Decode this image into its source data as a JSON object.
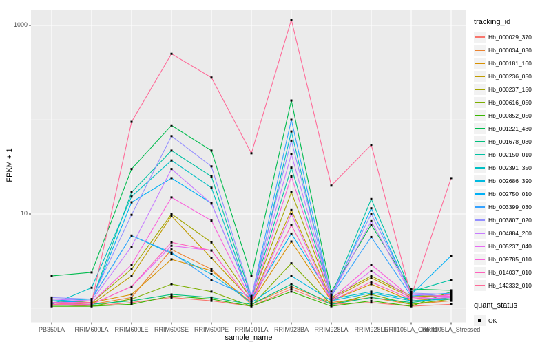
{
  "figure": {
    "background": "#FFFFFF",
    "panel_background": "#EBEBEB",
    "gridline_color": "#FFFFFF",
    "tick_label_color": "#4D4D4D",
    "point_color": "#000000"
  },
  "axes": {
    "x_title": "sample_name",
    "y_title": "FPKM + 1",
    "y_tick_labels": [
      "1000",
      "10"
    ],
    "y_tick_values": [
      1000,
      10
    ],
    "y_minor_gridline_values": [
      100,
      1
    ],
    "y_scale": "log10"
  },
  "legend": {
    "tracking_title": "tracking_id",
    "quant_title": "quant_status",
    "quant_ok_label": "OK",
    "quant_marker": "black-square"
  },
  "chart_data": {
    "type": "line",
    "title": "",
    "xlabel": "sample_name",
    "ylabel": "FPKM + 1",
    "legend_position": "right",
    "grid": true,
    "point_marker": "small-black-square",
    "y_axis": {
      "scale": "log10",
      "ticks": [
        10,
        1000
      ],
      "minor": [
        1,
        100
      ],
      "range": [
        0.95,
        1400
      ]
    },
    "categories": [
      "PB350LA",
      "RRIM600LA",
      "RRIM600LE",
      "RRIM600SE",
      "RRIM600PE",
      "RRIM901LA",
      "RRIM928BA",
      "RRIM928LA",
      "RRIM928LE",
      "RRII105LA_Control",
      "RRII105LA_Stressed"
    ],
    "series": [
      {
        "name": "Hb_000029_370",
        "color": "#F8766D",
        "values": [
          1.1,
          1.05,
          1.15,
          1.3,
          1.2,
          1.05,
          1.6,
          1.1,
          1.15,
          1.05,
          1.1
        ]
      },
      {
        "name": "Hb_000034_030",
        "color": "#EA8331",
        "values": [
          1.15,
          1.1,
          1.3,
          4.2,
          2.6,
          1.1,
          1.7,
          1.15,
          1.3,
          1.1,
          1.2
        ]
      },
      {
        "name": "Hb_000181_160",
        "color": "#D89000",
        "values": [
          1.2,
          1.15,
          1.4,
          3.3,
          2.5,
          1.15,
          5.1,
          1.2,
          1.8,
          1.2,
          1.3
        ]
      },
      {
        "name": "Hb_000236_050",
        "color": "#C09B00",
        "values": [
          1.1,
          1.1,
          2.2,
          9.5,
          3.4,
          1.2,
          11.0,
          1.25,
          2.1,
          1.3,
          1.4
        ]
      },
      {
        "name": "Hb_000237_150",
        "color": "#A3A500",
        "values": [
          1.1,
          1.15,
          2.6,
          10.0,
          5.0,
          1.25,
          17.0,
          1.3,
          2.2,
          1.35,
          1.35
        ]
      },
      {
        "name": "Hb_000616_050",
        "color": "#7CAE00",
        "values": [
          1.05,
          1.05,
          1.25,
          1.8,
          1.5,
          1.05,
          3.0,
          1.1,
          1.4,
          1.1,
          1.25
        ]
      },
      {
        "name": "Hb_000852_050",
        "color": "#39B600",
        "values": [
          1.05,
          1.05,
          1.1,
          1.35,
          1.25,
          1.05,
          1.5,
          1.05,
          1.2,
          1.05,
          1.5
        ]
      },
      {
        "name": "Hb_001221_480",
        "color": "#00BB4E",
        "values": [
          2.2,
          2.4,
          30.0,
          87.0,
          47.0,
          2.2,
          160.0,
          1.5,
          7.7,
          1.6,
          1.55
        ]
      },
      {
        "name": "Hb_001678_030",
        "color": "#00BF7D",
        "values": [
          1.1,
          1.1,
          1.2,
          1.4,
          1.3,
          1.1,
          1.8,
          1.1,
          1.3,
          1.15,
          1.3
        ]
      },
      {
        "name": "Hb_002150_010",
        "color": "#00C1A3",
        "values": [
          1.15,
          1.2,
          17.0,
          47.0,
          25.0,
          1.3,
          31.0,
          1.35,
          14.4,
          1.5,
          2.0
        ]
      },
      {
        "name": "Hb_002391_350",
        "color": "#00BFC4",
        "values": [
          1.1,
          1.65,
          15.3,
          37.0,
          19.0,
          1.2,
          75.0,
          1.25,
          1.5,
          1.25,
          1.3
        ]
      },
      {
        "name": "Hb_002686_390",
        "color": "#00BAE0",
        "values": [
          1.2,
          1.25,
          5.9,
          3.8,
          2.3,
          1.15,
          2.2,
          1.2,
          1.45,
          1.2,
          1.25
        ]
      },
      {
        "name": "Hb_002750_010",
        "color": "#00B0F6",
        "values": [
          1.15,
          1.2,
          13.3,
          24.0,
          13.0,
          1.25,
          6.2,
          1.3,
          11.5,
          1.4,
          3.6
        ]
      },
      {
        "name": "Hb_003399_030",
        "color": "#35A2FF",
        "values": [
          1.25,
          1.25,
          5.9,
          3.9,
          2.0,
          1.3,
          100.0,
          1.35,
          5.7,
          1.35,
          1.45
        ]
      },
      {
        "name": "Hb_003807_020",
        "color": "#9590FF",
        "values": [
          1.3,
          1.25,
          9.8,
          67.0,
          32.0,
          1.35,
          60.0,
          1.4,
          10.0,
          1.45,
          1.4
        ]
      },
      {
        "name": "Hb_004884_200",
        "color": "#C77CFF",
        "values": [
          1.25,
          1.2,
          4.5,
          30.0,
          12.9,
          1.3,
          43.0,
          1.35,
          8.4,
          1.4,
          1.35
        ]
      },
      {
        "name": "Hb_005237_040",
        "color": "#E76BF3",
        "values": [
          1.1,
          1.1,
          1.7,
          4.6,
          4.1,
          1.15,
          10.0,
          1.2,
          2.5,
          1.25,
          1.3
        ]
      },
      {
        "name": "Hb_009785_010",
        "color": "#FA62DB",
        "values": [
          1.15,
          1.15,
          2.9,
          15.0,
          8.5,
          1.2,
          25.0,
          1.25,
          2.9,
          1.3,
          1.35
        ]
      },
      {
        "name": "Hb_014037_010",
        "color": "#FF62BC",
        "values": [
          1.1,
          1.1,
          1.7,
          5.0,
          4.1,
          1.15,
          7.6,
          1.2,
          1.9,
          1.25,
          1.4
        ]
      },
      {
        "name": "Hb_142332_010",
        "color": "#FF6A98",
        "values": [
          1.1,
          1.15,
          95.0,
          500.0,
          280.0,
          44.0,
          1150.0,
          20.0,
          54.0,
          1.35,
          24.0
        ]
      }
    ]
  }
}
